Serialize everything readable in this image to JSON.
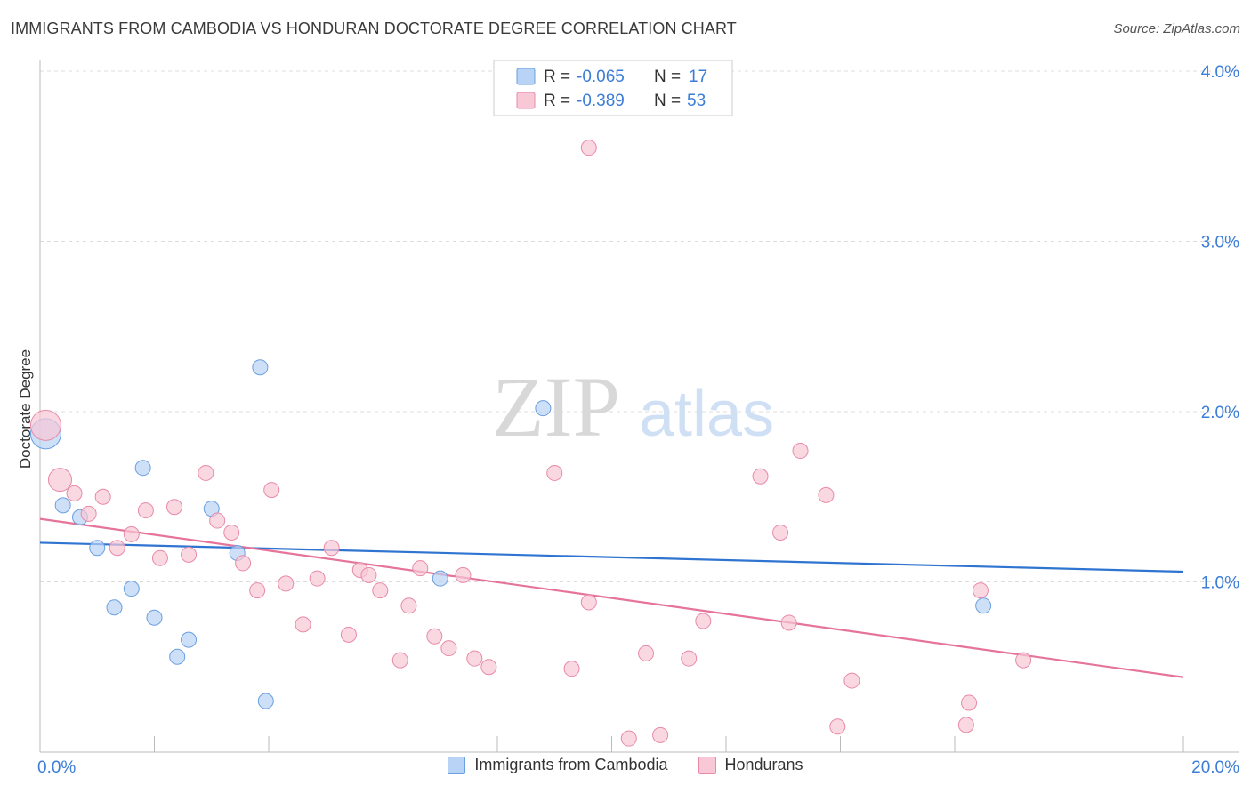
{
  "header": {
    "title": "IMMIGRANTS FROM CAMBODIA VS HONDURAN DOCTORATE DEGREE CORRELATION CHART",
    "source": "Source: ZipAtlas.com"
  },
  "watermark": {
    "zip": "ZIP",
    "atlas": "atlas"
  },
  "colors": {
    "blue_fill": "#b8d3f5",
    "blue_stroke": "#6a9fe0",
    "blue_line": "#2f74d0",
    "pink_fill": "#f8c8d6",
    "pink_stroke": "#e88aa8",
    "pink_line": "#e5739a",
    "tick_text": "#3b7dd8",
    "grid": "#dcdcdc"
  },
  "legend": {
    "blue": {
      "r_label": "R =",
      "r_value": "-0.065",
      "n_label": "N =",
      "n_value": "17"
    },
    "pink": {
      "r_label": "R =",
      "r_value": "-0.389",
      "n_label": "N =",
      "n_value": "53"
    }
  },
  "bottom_legend": {
    "blue_label": "Immigrants from Cambodia",
    "pink_label": "Hondurans"
  },
  "chart_data": {
    "type": "scatter",
    "title": "IMMIGRANTS FROM CAMBODIA VS HONDURAN DOCTORATE DEGREE CORRELATION CHART",
    "xlabel": "",
    "ylabel": "Doctorate Degree",
    "xlim": [
      0,
      20
    ],
    "ylim": [
      0,
      4.2
    ],
    "x_tick_labels": [
      {
        "value": 0,
        "label": "0.0%"
      },
      {
        "value": 20,
        "label": "20.0%"
      }
    ],
    "y_tick_labels": [
      {
        "value": 1,
        "label": "1.0%"
      },
      {
        "value": 2,
        "label": "2.0%"
      },
      {
        "value": 3,
        "label": "3.0%"
      },
      {
        "value": 4,
        "label": "4.0%"
      }
    ],
    "series": [
      {
        "name": "Immigrants from Cambodia",
        "color": "blue",
        "points": [
          {
            "x": 0.1,
            "y": 1.87,
            "big": true
          },
          {
            "x": 0.4,
            "y": 1.45
          },
          {
            "x": 0.7,
            "y": 1.38
          },
          {
            "x": 1.0,
            "y": 1.2
          },
          {
            "x": 1.3,
            "y": 0.85
          },
          {
            "x": 1.6,
            "y": 0.96
          },
          {
            "x": 1.8,
            "y": 1.67
          },
          {
            "x": 2.0,
            "y": 0.79
          },
          {
            "x": 2.4,
            "y": 0.56
          },
          {
            "x": 2.6,
            "y": 0.66
          },
          {
            "x": 3.0,
            "y": 1.43
          },
          {
            "x": 3.45,
            "y": 1.17
          },
          {
            "x": 3.85,
            "y": 2.26
          },
          {
            "x": 3.95,
            "y": 0.3
          },
          {
            "x": 7.0,
            "y": 1.02
          },
          {
            "x": 8.8,
            "y": 2.02
          },
          {
            "x": 16.5,
            "y": 0.86
          }
        ],
        "trend": {
          "x0": 0,
          "y0": 1.23,
          "x1": 20,
          "y1": 1.06
        }
      },
      {
        "name": "Hondurans",
        "color": "pink",
        "points": [
          {
            "x": 0.1,
            "y": 1.92,
            "big": true
          },
          {
            "x": 0.35,
            "y": 1.6,
            "mid": true
          },
          {
            "x": 0.6,
            "y": 1.52
          },
          {
            "x": 0.85,
            "y": 1.4
          },
          {
            "x": 1.1,
            "y": 1.5
          },
          {
            "x": 1.35,
            "y": 1.2
          },
          {
            "x": 1.6,
            "y": 1.28
          },
          {
            "x": 1.85,
            "y": 1.42
          },
          {
            "x": 2.1,
            "y": 1.14
          },
          {
            "x": 2.35,
            "y": 1.44
          },
          {
            "x": 2.6,
            "y": 1.16
          },
          {
            "x": 2.9,
            "y": 1.64
          },
          {
            "x": 3.1,
            "y": 1.36
          },
          {
            "x": 3.35,
            "y": 1.29
          },
          {
            "x": 3.55,
            "y": 1.11
          },
          {
            "x": 3.8,
            "y": 0.95
          },
          {
            "x": 4.05,
            "y": 1.54
          },
          {
            "x": 4.3,
            "y": 0.99
          },
          {
            "x": 4.6,
            "y": 0.75
          },
          {
            "x": 4.85,
            "y": 1.02
          },
          {
            "x": 5.1,
            "y": 1.2
          },
          {
            "x": 5.4,
            "y": 0.69
          },
          {
            "x": 5.6,
            "y": 1.07
          },
          {
            "x": 5.75,
            "y": 1.04
          },
          {
            "x": 5.95,
            "y": 0.95
          },
          {
            "x": 6.3,
            "y": 0.54
          },
          {
            "x": 6.45,
            "y": 0.86
          },
          {
            "x": 6.65,
            "y": 1.08
          },
          {
            "x": 6.9,
            "y": 0.68
          },
          {
            "x": 7.15,
            "y": 0.61
          },
          {
            "x": 7.4,
            "y": 1.04
          },
          {
            "x": 7.6,
            "y": 0.55
          },
          {
            "x": 7.85,
            "y": 0.5
          },
          {
            "x": 9.0,
            "y": 1.64
          },
          {
            "x": 9.3,
            "y": 0.49
          },
          {
            "x": 9.6,
            "y": 0.88
          },
          {
            "x": 9.6,
            "y": 3.55
          },
          {
            "x": 10.3,
            "y": 0.08
          },
          {
            "x": 10.6,
            "y": 0.58
          },
          {
            "x": 10.85,
            "y": 0.1
          },
          {
            "x": 11.35,
            "y": 0.55
          },
          {
            "x": 11.6,
            "y": 0.77
          },
          {
            "x": 12.6,
            "y": 1.62
          },
          {
            "x": 12.95,
            "y": 1.29
          },
          {
            "x": 13.1,
            "y": 0.76
          },
          {
            "x": 13.3,
            "y": 1.77
          },
          {
            "x": 13.75,
            "y": 1.51
          },
          {
            "x": 13.95,
            "y": 0.15
          },
          {
            "x": 14.2,
            "y": 0.42
          },
          {
            "x": 16.2,
            "y": 0.16
          },
          {
            "x": 16.25,
            "y": 0.29
          },
          {
            "x": 16.45,
            "y": 0.95
          },
          {
            "x": 17.2,
            "y": 0.54
          }
        ],
        "trend": {
          "x0": 0,
          "y0": 1.37,
          "x1": 20,
          "y1": 0.44
        }
      }
    ]
  }
}
